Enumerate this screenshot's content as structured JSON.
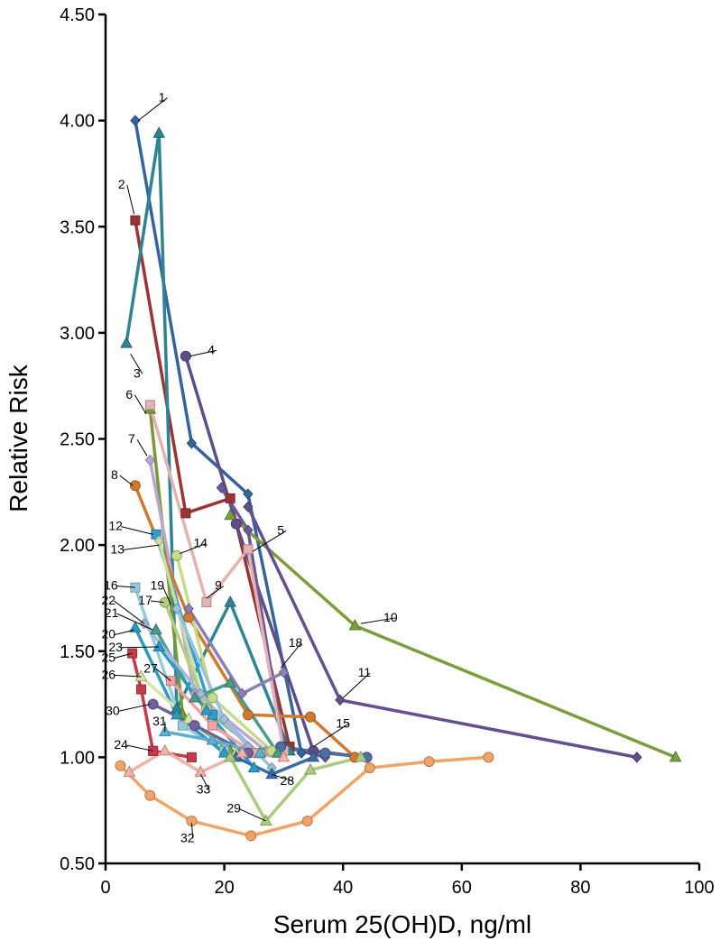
{
  "chart_data": {
    "type": "line",
    "title": "",
    "xlabel": "Serum 25(OH)D, ng/ml",
    "ylabel": "Relative Risk",
    "xlim": [
      0,
      100
    ],
    "ylim": [
      0.5,
      4.5
    ],
    "x_ticks": [
      0,
      20,
      40,
      60,
      80,
      100
    ],
    "y_ticks": [
      0.5,
      1.0,
      1.5,
      2.0,
      2.5,
      3.0,
      3.5,
      4.0,
      4.5
    ],
    "x_tick_labels": [
      "0",
      "20",
      "40",
      "60",
      "80",
      "100"
    ],
    "y_tick_labels": [
      "0.50",
      "1.00",
      "1.50",
      "2.00",
      "2.50",
      "3.00",
      "3.50",
      "4.00",
      "4.50"
    ],
    "grid": false,
    "legend": "none",
    "series": [
      {
        "name": "1",
        "color": "#34649a",
        "marker": "diamond",
        "x": [
          5,
          14.5,
          24,
          33
        ],
        "y": [
          4.0,
          2.48,
          2.24,
          1.02
        ]
      },
      {
        "name": "2",
        "color": "#9b3434",
        "marker": "square",
        "x": [
          5,
          13.5,
          21,
          31
        ],
        "y": [
          3.53,
          2.15,
          2.22,
          1.05
        ]
      },
      {
        "name": "3",
        "color": "#2e8492",
        "marker": "triangle",
        "x": [
          3.5,
          9,
          12,
          21,
          31
        ],
        "y": [
          2.95,
          3.94,
          1.23,
          1.73,
          1.03
        ]
      },
      {
        "name": "4",
        "color": "#5e4d8b",
        "marker": "circle",
        "x": [
          13.5,
          22,
          35,
          44
        ],
        "y": [
          2.89,
          2.1,
          1.03,
          1.0
        ]
      },
      {
        "name": "5",
        "color": "#6a5a9a",
        "marker": "diamond",
        "x": [
          19.5,
          24,
          30,
          37
        ],
        "y": [
          2.27,
          2.07,
          1.05,
          1.0
        ]
      },
      {
        "name": "6",
        "color": "#77993a",
        "marker": "triangle",
        "x": [
          7.5,
          13,
          21
        ],
        "y": [
          2.64,
          1.2,
          1.03
        ]
      },
      {
        "name": "7",
        "color": "#bba6d3",
        "marker": "diamond",
        "x": [
          7.5,
          15,
          27
        ],
        "y": [
          2.4,
          1.3,
          1.03
        ]
      },
      {
        "name": "8",
        "color": "#cf7a2f",
        "marker": "circle",
        "x": [
          5,
          14,
          24,
          34.5,
          42
        ],
        "y": [
          2.28,
          1.66,
          1.2,
          1.19,
          1.0
        ]
      },
      {
        "name": "9",
        "color": "#e4b3b1",
        "marker": "square",
        "x": [
          7.5,
          17,
          24,
          30
        ],
        "y": [
          2.66,
          1.73,
          1.98,
          1.03
        ]
      },
      {
        "name": "10",
        "color": "#7a9e3b",
        "marker": "triangle",
        "x": [
          21,
          42,
          96
        ],
        "y": [
          2.14,
          1.62,
          1.0
        ]
      },
      {
        "name": "11",
        "color": "#644f8f",
        "marker": "diamond",
        "x": [
          24,
          39.5,
          89.5
        ],
        "y": [
          2.18,
          1.27,
          1.0
        ]
      },
      {
        "name": "12",
        "color": "#2f9fcc",
        "marker": "square",
        "x": [
          8.5,
          18,
          26
        ],
        "y": [
          2.05,
          1.2,
          1.02
        ]
      },
      {
        "name": "13",
        "color": "#c9dca4",
        "marker": "diamond",
        "x": [
          9,
          16,
          24
        ],
        "y": [
          2.02,
          1.3,
          1.05
        ]
      },
      {
        "name": "14",
        "color": "#c6dc8a",
        "marker": "circle",
        "x": [
          12,
          18,
          28
        ],
        "y": [
          1.95,
          1.28,
          1.03
        ]
      },
      {
        "name": "15",
        "color": "#4e6fa3",
        "marker": "circle",
        "x": [
          29.5,
          37,
          44
        ],
        "y": [
          1.05,
          1.02,
          1.0
        ]
      },
      {
        "name": "16",
        "color": "#93cddd",
        "marker": "square",
        "x": [
          5,
          13,
          20
        ],
        "y": [
          1.8,
          1.15,
          1.03
        ]
      },
      {
        "name": "17",
        "color": "#b4ce7d",
        "marker": "circle",
        "x": [
          10,
          17,
          26
        ],
        "y": [
          1.73,
          1.23,
          1.02
        ]
      },
      {
        "name": "18",
        "color": "#8d7fb8",
        "marker": "diamond",
        "x": [
          14,
          23,
          30
        ],
        "y": [
          1.7,
          1.3,
          1.4
        ]
      },
      {
        "name": "19",
        "color": "#9ac2e0",
        "marker": "diamond",
        "x": [
          12,
          20,
          28
        ],
        "y": [
          1.7,
          1.18,
          0.95
        ]
      },
      {
        "name": "20",
        "color": "#2a9cc0",
        "marker": "triangle",
        "x": [
          5,
          12,
          20
        ],
        "y": [
          1.61,
          1.2,
          1.02
        ]
      },
      {
        "name": "21",
        "color": "#4a9c8a",
        "marker": "triangle",
        "x": [
          8.5,
          15,
          21,
          29
        ],
        "y": [
          1.6,
          1.28,
          1.35,
          1.02
        ]
      },
      {
        "name": "22",
        "color": "#a8b9d8",
        "marker": "diamond",
        "x": [
          6.5,
          16,
          24
        ],
        "y": [
          1.63,
          1.3,
          1.05
        ]
      },
      {
        "name": "23",
        "color": "#2b9cc8",
        "marker": "triangle",
        "x": [
          9,
          17,
          25
        ],
        "y": [
          1.52,
          1.22,
          0.95
        ]
      },
      {
        "name": "24",
        "color": "#c43c4a",
        "marker": "square",
        "x": [
          8,
          14.5
        ],
        "y": [
          1.03,
          1.0
        ]
      },
      {
        "name": "25",
        "color": "#c43c4a",
        "marker": "square",
        "x": [
          4.5,
          6,
          8
        ],
        "y": [
          1.49,
          1.32,
          1.03
        ]
      },
      {
        "name": "26",
        "color": "#d3e4a8",
        "marker": "triangle",
        "x": [
          6,
          14,
          22
        ],
        "y": [
          1.38,
          1.18,
          1.02
        ]
      },
      {
        "name": "27",
        "color": "#f2a2a2",
        "marker": "square",
        "x": [
          11,
          18,
          25
        ],
        "y": [
          1.36,
          1.15,
          1.02
        ]
      },
      {
        "name": "28",
        "color": "#3c6ca8",
        "marker": "triangle",
        "x": [
          22,
          28,
          35
        ],
        "y": [
          1.0,
          0.92,
          1.0
        ]
      },
      {
        "name": "29",
        "color": "#a9cd7f",
        "marker": "triangle",
        "x": [
          21,
          27,
          34.5,
          43
        ],
        "y": [
          1.0,
          0.7,
          0.94,
          1.0
        ]
      },
      {
        "name": "30",
        "color": "#7061a0",
        "marker": "circle",
        "x": [
          8,
          15,
          24
        ],
        "y": [
          1.25,
          1.15,
          1.02
        ]
      },
      {
        "name": "31",
        "color": "#5cb0d0",
        "marker": "triangle",
        "x": [
          10,
          18,
          26
        ],
        "y": [
          1.12,
          1.08,
          1.02
        ]
      },
      {
        "name": "32",
        "color": "#f0a468",
        "marker": "circle",
        "x": [
          2.5,
          7.5,
          14.5,
          24.5,
          34,
          44.5,
          54.5,
          64.5
        ],
        "y": [
          0.96,
          0.82,
          0.7,
          0.63,
          0.7,
          0.95,
          0.98,
          1.0
        ]
      },
      {
        "name": "33",
        "color": "#f2b2a6",
        "marker": "triangle",
        "x": [
          4,
          10,
          16,
          23,
          30
        ],
        "y": [
          0.93,
          1.03,
          0.93,
          1.02,
          1.0
        ]
      }
    ],
    "annotations": [
      {
        "text": "1",
        "x": 9.5,
        "y": 4.09,
        "pointer": [
          5.5,
          4.0
        ]
      },
      {
        "text": "2",
        "x": 2.7,
        "y": 3.68,
        "pointer": [
          4.8,
          3.56
        ]
      },
      {
        "text": "3",
        "x": 5.3,
        "y": 2.79,
        "pointer": [
          4.2,
          2.9
        ]
      },
      {
        "text": "4",
        "x": 17.8,
        "y": 2.9,
        "pointer": [
          14.2,
          2.89
        ]
      },
      {
        "text": "5",
        "x": 29.5,
        "y": 2.05,
        "pointer": [
          24.8,
          1.97
        ]
      },
      {
        "text": "6",
        "x": 4.0,
        "y": 2.69,
        "pointer": [
          6.8,
          2.62
        ]
      },
      {
        "text": "7",
        "x": 4.4,
        "y": 2.48,
        "pointer": [
          7,
          2.42
        ]
      },
      {
        "text": "8",
        "x": 1.5,
        "y": 2.31,
        "pointer": [
          4.6,
          2.28
        ]
      },
      {
        "text": "9",
        "x": 19.0,
        "y": 1.79,
        "pointer": [
          17,
          1.75
        ]
      },
      {
        "text": "10",
        "x": 48,
        "y": 1.64,
        "pointer": [
          43,
          1.63
        ]
      },
      {
        "text": "11",
        "x": 43.6,
        "y": 1.38,
        "pointer": [
          40,
          1.28
        ]
      },
      {
        "text": "12",
        "x": 1.7,
        "y": 2.07,
        "pointer": [
          8,
          2.05
        ]
      },
      {
        "text": "13",
        "x": 2.0,
        "y": 1.96,
        "pointer": [
          9,
          2.0
        ]
      },
      {
        "text": "14",
        "x": 16.0,
        "y": 1.99,
        "pointer": [
          12.5,
          1.96
        ]
      },
      {
        "text": "15",
        "x": 40.0,
        "y": 1.14,
        "pointer": [
          35,
          1.05
        ]
      },
      {
        "text": "16",
        "x": 0.9,
        "y": 1.79,
        "pointer": [
          5,
          1.8
        ]
      },
      {
        "text": "17",
        "x": 6.7,
        "y": 1.72,
        "pointer": [
          9.8,
          1.73
        ]
      },
      {
        "text": "18",
        "x": 32.0,
        "y": 1.52,
        "pointer": [
          29.5,
          1.42
        ]
      },
      {
        "text": "19",
        "x": 8.7,
        "y": 1.79,
        "pointer": [
          11,
          1.72
        ]
      },
      {
        "text": "20",
        "x": 0.5,
        "y": 1.56,
        "pointer": [
          4.8,
          1.6
        ]
      },
      {
        "text": "21",
        "x": 1.0,
        "y": 1.66,
        "pointer": [
          8,
          1.6
        ]
      },
      {
        "text": "22",
        "x": 0.5,
        "y": 1.72,
        "pointer": [
          6.5,
          1.63
        ]
      },
      {
        "text": "23",
        "x": 1.7,
        "y": 1.5,
        "pointer": [
          9,
          1.52
        ]
      },
      {
        "text": "24",
        "x": 2.6,
        "y": 1.04,
        "pointer": [
          8,
          1.03
        ]
      },
      {
        "text": "25",
        "x": 0.5,
        "y": 1.45,
        "pointer": [
          4.5,
          1.49
        ]
      },
      {
        "text": "26",
        "x": 0.5,
        "y": 1.37,
        "pointer": [
          6,
          1.38
        ]
      },
      {
        "text": "27",
        "x": 7.6,
        "y": 1.4,
        "pointer": [
          11,
          1.36
        ]
      },
      {
        "text": "28",
        "x": 30.6,
        "y": 0.87,
        "pointer": [
          28,
          0.92
        ]
      },
      {
        "text": "29",
        "x": 21.6,
        "y": 0.74,
        "pointer": [
          27,
          0.7
        ]
      },
      {
        "text": "30",
        "x": 1.2,
        "y": 1.2,
        "pointer": [
          7.5,
          1.25
        ]
      },
      {
        "text": "31",
        "x": 9.1,
        "y": 1.15,
        "pointer": [
          10,
          1.12
        ]
      },
      {
        "text": "32",
        "x": 13.8,
        "y": 0.6,
        "pointer": [
          14.5,
          0.69
        ]
      },
      {
        "text": "33",
        "x": 16.5,
        "y": 0.83,
        "pointer": [
          16,
          0.92
        ]
      }
    ]
  }
}
